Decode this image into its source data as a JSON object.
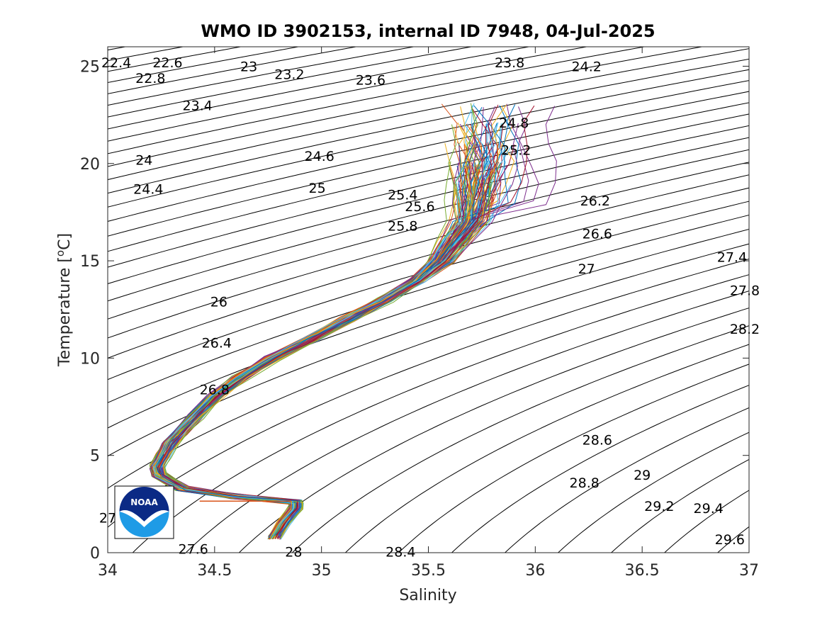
{
  "chart_data": {
    "type": "line",
    "title": "WMO ID 3902153, internal ID 7948, 04-Jul-2025",
    "xlabel": "Salinity",
    "ylabel_main": "Temperature [",
    "ylabel_sup": "o",
    "ylabel_tail": "C]",
    "xlim": [
      34,
      37
    ],
    "ylim": [
      0,
      26
    ],
    "xticks": [
      {
        "v": 34,
        "label": "34"
      },
      {
        "v": 34.5,
        "label": "34.5"
      },
      {
        "v": 35,
        "label": "35"
      },
      {
        "v": 35.5,
        "label": "35.5"
      },
      {
        "v": 36,
        "label": "36"
      },
      {
        "v": 36.5,
        "label": "36.5"
      },
      {
        "v": 37,
        "label": "37"
      }
    ],
    "yticks": [
      {
        "v": 0,
        "label": "0"
      },
      {
        "v": 5,
        "label": "5"
      },
      {
        "v": 10,
        "label": "10"
      },
      {
        "v": 15,
        "label": "15"
      },
      {
        "v": 20,
        "label": "20"
      },
      {
        "v": 25,
        "label": "25"
      }
    ],
    "grid": false,
    "isopycnals": {
      "start": 22.0,
      "end": 30.4,
      "step": 0.2
    },
    "isopycnal_labels": [
      {
        "text": "22.4",
        "s": 34.04,
        "t": 25.2
      },
      {
        "text": "22.6",
        "s": 34.28,
        "t": 25.2
      },
      {
        "text": "22.8",
        "s": 34.2,
        "t": 24.4
      },
      {
        "text": "23",
        "s": 34.66,
        "t": 25.0
      },
      {
        "text": "23.2",
        "s": 34.85,
        "t": 24.6
      },
      {
        "text": "23.6",
        "s": 35.23,
        "t": 24.3
      },
      {
        "text": "23.8",
        "s": 35.88,
        "t": 25.2
      },
      {
        "text": "24.2",
        "s": 36.24,
        "t": 25.0
      },
      {
        "text": "23.4",
        "s": 34.42,
        "t": 23.0
      },
      {
        "text": "24.8",
        "s": 35.9,
        "t": 22.1
      },
      {
        "text": "24",
        "s": 34.17,
        "t": 20.2
      },
      {
        "text": "24.6",
        "s": 34.99,
        "t": 20.4
      },
      {
        "text": "25.2",
        "s": 35.91,
        "t": 20.7
      },
      {
        "text": "24.4",
        "s": 34.19,
        "t": 18.7
      },
      {
        "text": "25",
        "s": 34.98,
        "t": 18.75
      },
      {
        "text": "25.4",
        "s": 35.38,
        "t": 18.4
      },
      {
        "text": "25.6",
        "s": 35.46,
        "t": 17.8
      },
      {
        "text": "26.2",
        "s": 36.28,
        "t": 18.1
      },
      {
        "text": "25.8",
        "s": 35.38,
        "t": 16.8
      },
      {
        "text": "26.6",
        "s": 36.29,
        "t": 16.4
      },
      {
        "text": "27.4",
        "s": 36.92,
        "t": 15.2
      },
      {
        "text": "27",
        "s": 36.24,
        "t": 14.6
      },
      {
        "text": "27.8",
        "s": 36.98,
        "t": 13.5
      },
      {
        "text": "26",
        "s": 34.52,
        "t": 12.9
      },
      {
        "text": "28.2",
        "s": 36.98,
        "t": 11.5
      },
      {
        "text": "26.4",
        "s": 34.51,
        "t": 10.8
      },
      {
        "text": "26.8",
        "s": 34.5,
        "t": 8.4
      },
      {
        "text": "28.6",
        "s": 36.29,
        "t": 5.8
      },
      {
        "text": "29",
        "s": 36.5,
        "t": 4.0
      },
      {
        "text": "28.8",
        "s": 36.23,
        "t": 3.6
      },
      {
        "text": "29.2",
        "s": 36.58,
        "t": 2.4
      },
      {
        "text": "29.4",
        "s": 36.81,
        "t": 2.3
      },
      {
        "text": "27",
        "s": 34.0,
        "t": 1.8
      },
      {
        "text": "27.6",
        "s": 34.4,
        "t": 0.2
      },
      {
        "text": "28",
        "s": 34.87,
        "t": 0.05
      },
      {
        "text": "28.4",
        "s": 35.37,
        "t": 0.05
      },
      {
        "text": "29.6",
        "s": 36.91,
        "t": 0.7
      }
    ],
    "profile_count": 120,
    "mean_profile": [
      {
        "t": 0.8,
        "s": 34.78
      },
      {
        "t": 1.5,
        "s": 34.82
      },
      {
        "t": 2.3,
        "s": 34.88
      },
      {
        "t": 2.6,
        "s": 34.88
      },
      {
        "t": 2.9,
        "s": 34.6
      },
      {
        "t": 3.3,
        "s": 34.35
      },
      {
        "t": 4.0,
        "s": 34.24
      },
      {
        "t": 4.4,
        "s": 34.23
      },
      {
        "t": 5.0,
        "s": 34.26
      },
      {
        "t": 5.6,
        "s": 34.29
      },
      {
        "t": 6.2,
        "s": 34.34
      },
      {
        "t": 7.0,
        "s": 34.41
      },
      {
        "t": 8.0,
        "s": 34.5
      },
      {
        "t": 9.0,
        "s": 34.62
      },
      {
        "t": 10.0,
        "s": 34.77
      },
      {
        "t": 11.0,
        "s": 34.95
      },
      {
        "t": 12.0,
        "s": 35.12
      },
      {
        "t": 13.0,
        "s": 35.3
      },
      {
        "t": 14.0,
        "s": 35.45
      },
      {
        "t": 15.0,
        "s": 35.56
      },
      {
        "t": 16.0,
        "s": 35.63
      },
      {
        "t": 17.0,
        "s": 35.7
      },
      {
        "t": 18.0,
        "s": 35.72
      },
      {
        "t": 19.0,
        "s": 35.73
      },
      {
        "t": 20.0,
        "s": 35.74
      },
      {
        "t": 21.0,
        "s": 35.74
      },
      {
        "t": 22.0,
        "s": 35.74
      },
      {
        "t": 23.0,
        "s": 35.73
      }
    ],
    "extra_segment": {
      "s1": 34.43,
      "s2": 34.86,
      "t": 2.65
    },
    "series_colors": [
      "#0072BD",
      "#D95319",
      "#EDB120",
      "#7E2F8E",
      "#77AC30",
      "#4DBEEE",
      "#A2142F"
    ]
  },
  "logo": {
    "text": "NOAA",
    "colors": {
      "navy": "#0b2a85",
      "sky": "#1e9be6",
      "white": "#ffffff"
    }
  }
}
